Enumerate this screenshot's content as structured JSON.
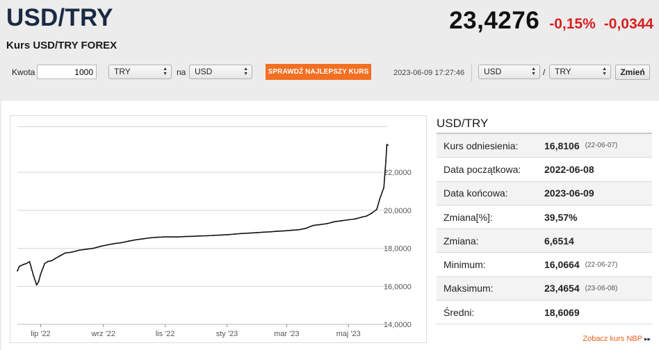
{
  "header": {
    "pair": "USD/TRY",
    "subtitle": "Kurs USD/TRY FOREX",
    "price": "23,4276",
    "change_pct": "-0,15%",
    "change_abs": "-0,0344"
  },
  "converter": {
    "amount_label": "Kwota",
    "amount_value": "1000",
    "from_currency": "TRY",
    "to_label": "na",
    "to_currency": "USD",
    "check_button": "SPRAWDŹ NAJLEPSZY KURS",
    "timestamp": "2023-06-09 17:27:46",
    "pair_from": "USD",
    "pair_sep": "/",
    "pair_to": "TRY",
    "change_button": "Zmień"
  },
  "stats": {
    "title": "USD/TRY",
    "rows": [
      {
        "label": "Kurs odniesienia:",
        "value": "16,8106",
        "date": "(22-06-07)"
      },
      {
        "label": "Data początkowa:",
        "value": "2022-06-08",
        "date": ""
      },
      {
        "label": "Data końcowa:",
        "value": "2023-06-09",
        "date": ""
      },
      {
        "label": "Zmiana[%]:",
        "value": "39,57%",
        "date": ""
      },
      {
        "label": "Zmiana:",
        "value": "6,6514",
        "date": ""
      },
      {
        "label": "Minimum:",
        "value": "16,0664",
        "date": "(22-06-27)"
      },
      {
        "label": "Maksimum:",
        "value": "23,4654",
        "date": "(23-06-08)"
      },
      {
        "label": "Średni:",
        "value": "18,6069",
        "date": ""
      }
    ],
    "nbp_link": "Zobacz kurs NBP",
    "nbp_arrow": "▸▸"
  },
  "colors": {
    "accent_orange": "#f36f21",
    "negative_red": "#d61f1f",
    "title_navy": "#1a2a44"
  },
  "chart_data": {
    "type": "line",
    "title": "",
    "xlabel": "",
    "ylabel": "",
    "ylim": [
      14,
      24.6
    ],
    "grid": true,
    "y_ticks": [
      "14,0000",
      "16,0000",
      "18,0000",
      "20,0000",
      "22,0000"
    ],
    "y_tick_values": [
      14,
      16,
      18,
      20,
      22
    ],
    "x_ticks": [
      "lip '22",
      "wrz '22",
      "lis '22",
      "sty '23",
      "mar '23",
      "maj '23"
    ],
    "x_tick_values": [
      "2022-07-01",
      "2022-09-01",
      "2022-11-01",
      "2023-01-01",
      "2023-03-01",
      "2023-05-01"
    ],
    "x_range": [
      "2022-06-08",
      "2023-06-09"
    ],
    "series": [
      {
        "x": [
          "2022-06-08",
          "2022-06-10",
          "2022-06-14",
          "2022-06-17",
          "2022-06-20",
          "2022-06-24",
          "2022-06-27",
          "2022-06-29",
          "2022-07-01",
          "2022-07-05",
          "2022-07-08",
          "2022-07-12",
          "2022-07-15",
          "2022-07-20",
          "2022-07-25",
          "2022-08-01",
          "2022-08-08",
          "2022-08-15",
          "2022-08-22",
          "2022-08-29",
          "2022-09-05",
          "2022-09-12",
          "2022-09-19",
          "2022-09-26",
          "2022-10-03",
          "2022-10-10",
          "2022-10-17",
          "2022-10-24",
          "2022-10-31",
          "2022-11-07",
          "2022-11-14",
          "2022-11-21",
          "2022-11-28",
          "2022-12-05",
          "2022-12-12",
          "2022-12-19",
          "2022-12-26",
          "2023-01-02",
          "2023-01-09",
          "2023-01-16",
          "2023-01-23",
          "2023-01-30",
          "2023-02-06",
          "2023-02-13",
          "2023-02-20",
          "2023-02-27",
          "2023-03-06",
          "2023-03-13",
          "2023-03-20",
          "2023-03-27",
          "2023-04-03",
          "2023-04-10",
          "2023-04-17",
          "2023-04-24",
          "2023-05-01",
          "2023-05-08",
          "2023-05-15",
          "2023-05-19",
          "2023-05-24",
          "2023-05-29",
          "2023-06-01",
          "2023-06-05",
          "2023-06-07",
          "2023-06-08",
          "2023-06-09"
        ],
        "values": [
          16.81,
          17.05,
          17.15,
          17.2,
          17.3,
          16.55,
          16.07,
          16.25,
          16.65,
          17.2,
          17.3,
          17.35,
          17.45,
          17.6,
          17.75,
          17.8,
          17.9,
          17.95,
          18.0,
          18.1,
          18.18,
          18.25,
          18.3,
          18.38,
          18.45,
          18.5,
          18.55,
          18.58,
          18.6,
          18.6,
          18.6,
          18.62,
          18.63,
          18.65,
          18.66,
          18.68,
          18.7,
          18.72,
          18.75,
          18.78,
          18.8,
          18.82,
          18.85,
          18.87,
          18.9,
          18.92,
          18.95,
          18.98,
          19.05,
          19.2,
          19.25,
          19.3,
          19.4,
          19.45,
          19.5,
          19.55,
          19.65,
          19.7,
          19.85,
          20.05,
          20.6,
          21.2,
          22.6,
          23.4654,
          23.4276
        ]
      }
    ]
  }
}
